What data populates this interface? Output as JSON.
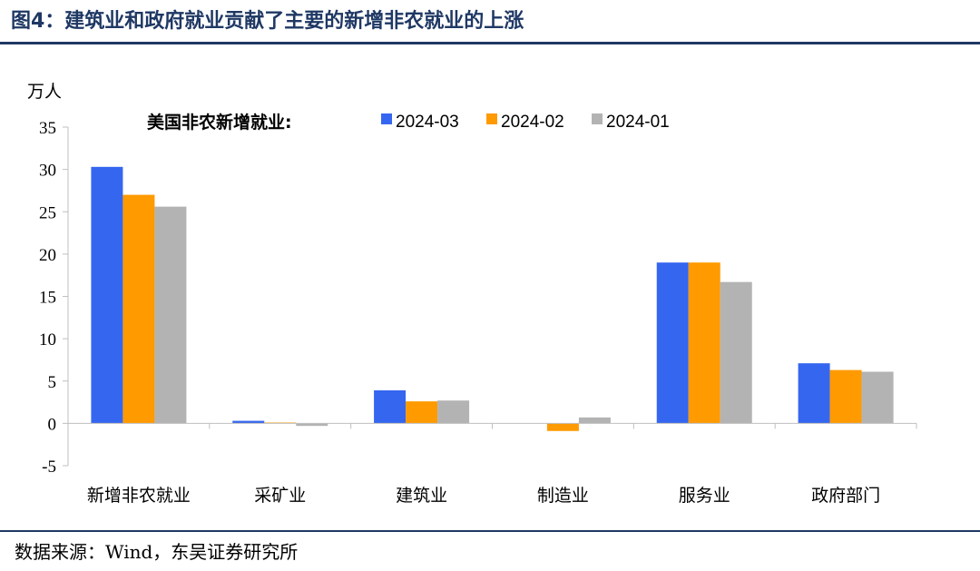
{
  "title": "图4：建筑业和政府就业贡献了主要的新增非农就业的上涨",
  "source": "数据来源：Wind，东吴证券研究所",
  "chart_data": {
    "type": "bar",
    "unit_label": "万人",
    "legend_title": "美国非农新增就业:",
    "legend_position": "top",
    "categories": [
      "新增非农就业",
      "采矿业",
      "建筑业",
      "制造业",
      "服务业",
      "政府部门"
    ],
    "series": [
      {
        "name": "2024-03",
        "color": "#3566f0",
        "values": [
          30.3,
          0.3,
          3.9,
          0.0,
          19.0,
          7.1
        ]
      },
      {
        "name": "2024-02",
        "color": "#ff9a00",
        "values": [
          27.0,
          0.1,
          2.6,
          -0.9,
          19.0,
          6.3
        ]
      },
      {
        "name": "2024-01",
        "color": "#b3b3b3",
        "values": [
          25.6,
          -0.3,
          2.7,
          0.7,
          16.7,
          6.1
        ]
      }
    ],
    "ylim": [
      -5,
      35
    ],
    "yticks": [
      -5,
      0,
      5,
      10,
      15,
      20,
      25,
      30,
      35
    ],
    "grid": false
  }
}
